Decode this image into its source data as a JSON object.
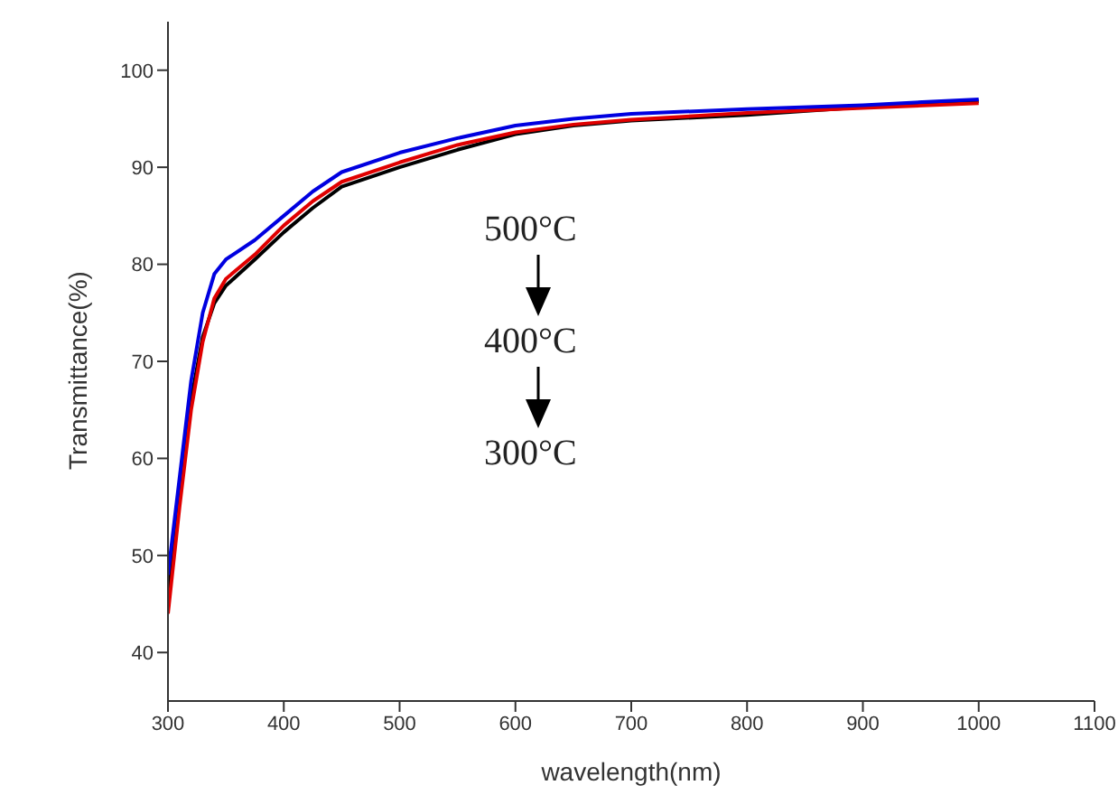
{
  "chart_data": {
    "type": "line",
    "xlabel": "wavelength(nm)",
    "ylabel": "Transmittance(%)",
    "x": [
      300,
      310,
      320,
      330,
      340,
      350,
      375,
      400,
      425,
      450,
      500,
      550,
      600,
      650,
      700,
      800,
      900,
      1000
    ],
    "series": [
      {
        "color": "#000000",
        "values": [
          46,
          56,
          66,
          72.5,
          76,
          77.8,
          80.5,
          83.3,
          85.8,
          88,
          90,
          91.8,
          93.4,
          94.3,
          94.8,
          95.4,
          96.2,
          96.8
        ]
      },
      {
        "color": "#e00000",
        "values": [
          44,
          55,
          65,
          72,
          76.5,
          78.5,
          81,
          84,
          86.5,
          88.5,
          90.5,
          92.3,
          93.6,
          94.4,
          94.9,
          95.6,
          96.1,
          96.6
        ]
      },
      {
        "color": "#0000e0",
        "values": [
          48,
          58,
          68,
          75,
          79,
          80.5,
          82.5,
          85,
          87.5,
          89.5,
          91.5,
          93,
          94.3,
          95,
          95.5,
          96,
          96.4,
          97
        ]
      }
    ],
    "xlim": [
      300,
      1100
    ],
    "xticks": [
      300,
      400,
      500,
      600,
      700,
      800,
      900,
      1000,
      1100
    ],
    "ylim": [
      35,
      105
    ],
    "yticks": [
      40,
      50,
      60,
      70,
      80,
      90,
      100
    ],
    "grid": false,
    "legend": false,
    "marker": "none",
    "line_style": "solid",
    "annotations": [
      "500°C",
      "400°C",
      "300°C"
    ]
  }
}
